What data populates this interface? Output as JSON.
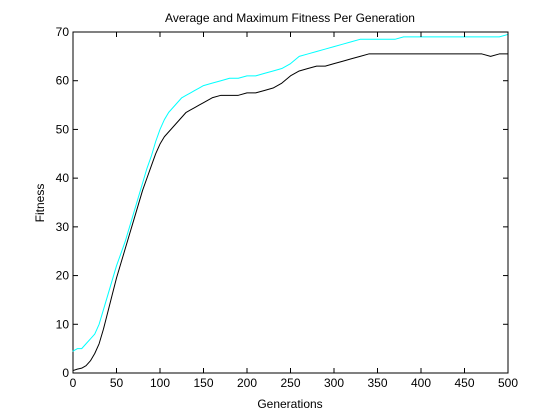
{
  "chart_data": {
    "type": "line",
    "title": "Average and Maximum Fitness Per Generation",
    "xlabel": "Generations",
    "ylabel": "Fitness",
    "xlim": [
      0,
      500
    ],
    "ylim": [
      0,
      70
    ],
    "xticks": [
      0,
      50,
      100,
      150,
      200,
      250,
      300,
      350,
      400,
      450,
      500
    ],
    "yticks": [
      0,
      10,
      20,
      30,
      40,
      50,
      60,
      70
    ],
    "grid": false,
    "legend": "none",
    "series": [
      {
        "color": "#00ffff",
        "x": [
          0,
          5,
          10,
          15,
          20,
          25,
          30,
          35,
          40,
          45,
          50,
          55,
          60,
          65,
          70,
          75,
          80,
          85,
          90,
          95,
          100,
          105,
          110,
          115,
          120,
          125,
          130,
          135,
          140,
          145,
          150,
          160,
          170,
          180,
          190,
          200,
          210,
          220,
          230,
          240,
          250,
          260,
          270,
          280,
          290,
          300,
          310,
          320,
          330,
          340,
          350,
          360,
          370,
          380,
          390,
          400,
          410,
          420,
          430,
          440,
          450,
          460,
          470,
          480,
          490,
          500
        ],
        "y": [
          4.5,
          5,
          5,
          6,
          7,
          8,
          10,
          13,
          16,
          19,
          22,
          24.5,
          27,
          30,
          33,
          36,
          39,
          42,
          44.5,
          47.5,
          50,
          52,
          53.5,
          54.5,
          55.5,
          56.5,
          57,
          57.5,
          58,
          58.5,
          59,
          59.5,
          60,
          60.5,
          60.5,
          61,
          61,
          61.5,
          62,
          62.5,
          63.5,
          65,
          65.5,
          66,
          66.5,
          67,
          67.5,
          68,
          68.5,
          68.5,
          68.5,
          68.5,
          68.5,
          69,
          69,
          69,
          69,
          69,
          69,
          69,
          69,
          69,
          69,
          69,
          69,
          69.5
        ]
      },
      {
        "color": "#000000",
        "x": [
          0,
          5,
          10,
          15,
          20,
          25,
          30,
          35,
          40,
          45,
          50,
          55,
          60,
          65,
          70,
          75,
          80,
          85,
          90,
          95,
          100,
          105,
          110,
          115,
          120,
          125,
          130,
          135,
          140,
          145,
          150,
          160,
          170,
          180,
          190,
          200,
          210,
          220,
          230,
          240,
          250,
          260,
          270,
          280,
          290,
          300,
          310,
          320,
          330,
          340,
          350,
          360,
          370,
          380,
          390,
          400,
          410,
          420,
          430,
          440,
          450,
          460,
          470,
          480,
          490,
          500
        ],
        "y": [
          0.5,
          0.8,
          1,
          1.5,
          2.5,
          4,
          6,
          9,
          12.5,
          16,
          19.5,
          22.5,
          25.5,
          28.5,
          31.5,
          34.5,
          37.5,
          40,
          42.5,
          45,
          47,
          48.5,
          49.5,
          50.5,
          51.5,
          52.5,
          53.5,
          54,
          54.5,
          55,
          55.5,
          56.5,
          57,
          57,
          57,
          57.5,
          57.5,
          58,
          58.5,
          59.5,
          61,
          62,
          62.5,
          63,
          63,
          63.5,
          64,
          64.5,
          65,
          65.5,
          65.5,
          65.5,
          65.5,
          65.5,
          65.5,
          65.5,
          65.5,
          65.5,
          65.5,
          65.5,
          65.5,
          65.5,
          65.5,
          65,
          65.5,
          65.5
        ]
      }
    ]
  }
}
